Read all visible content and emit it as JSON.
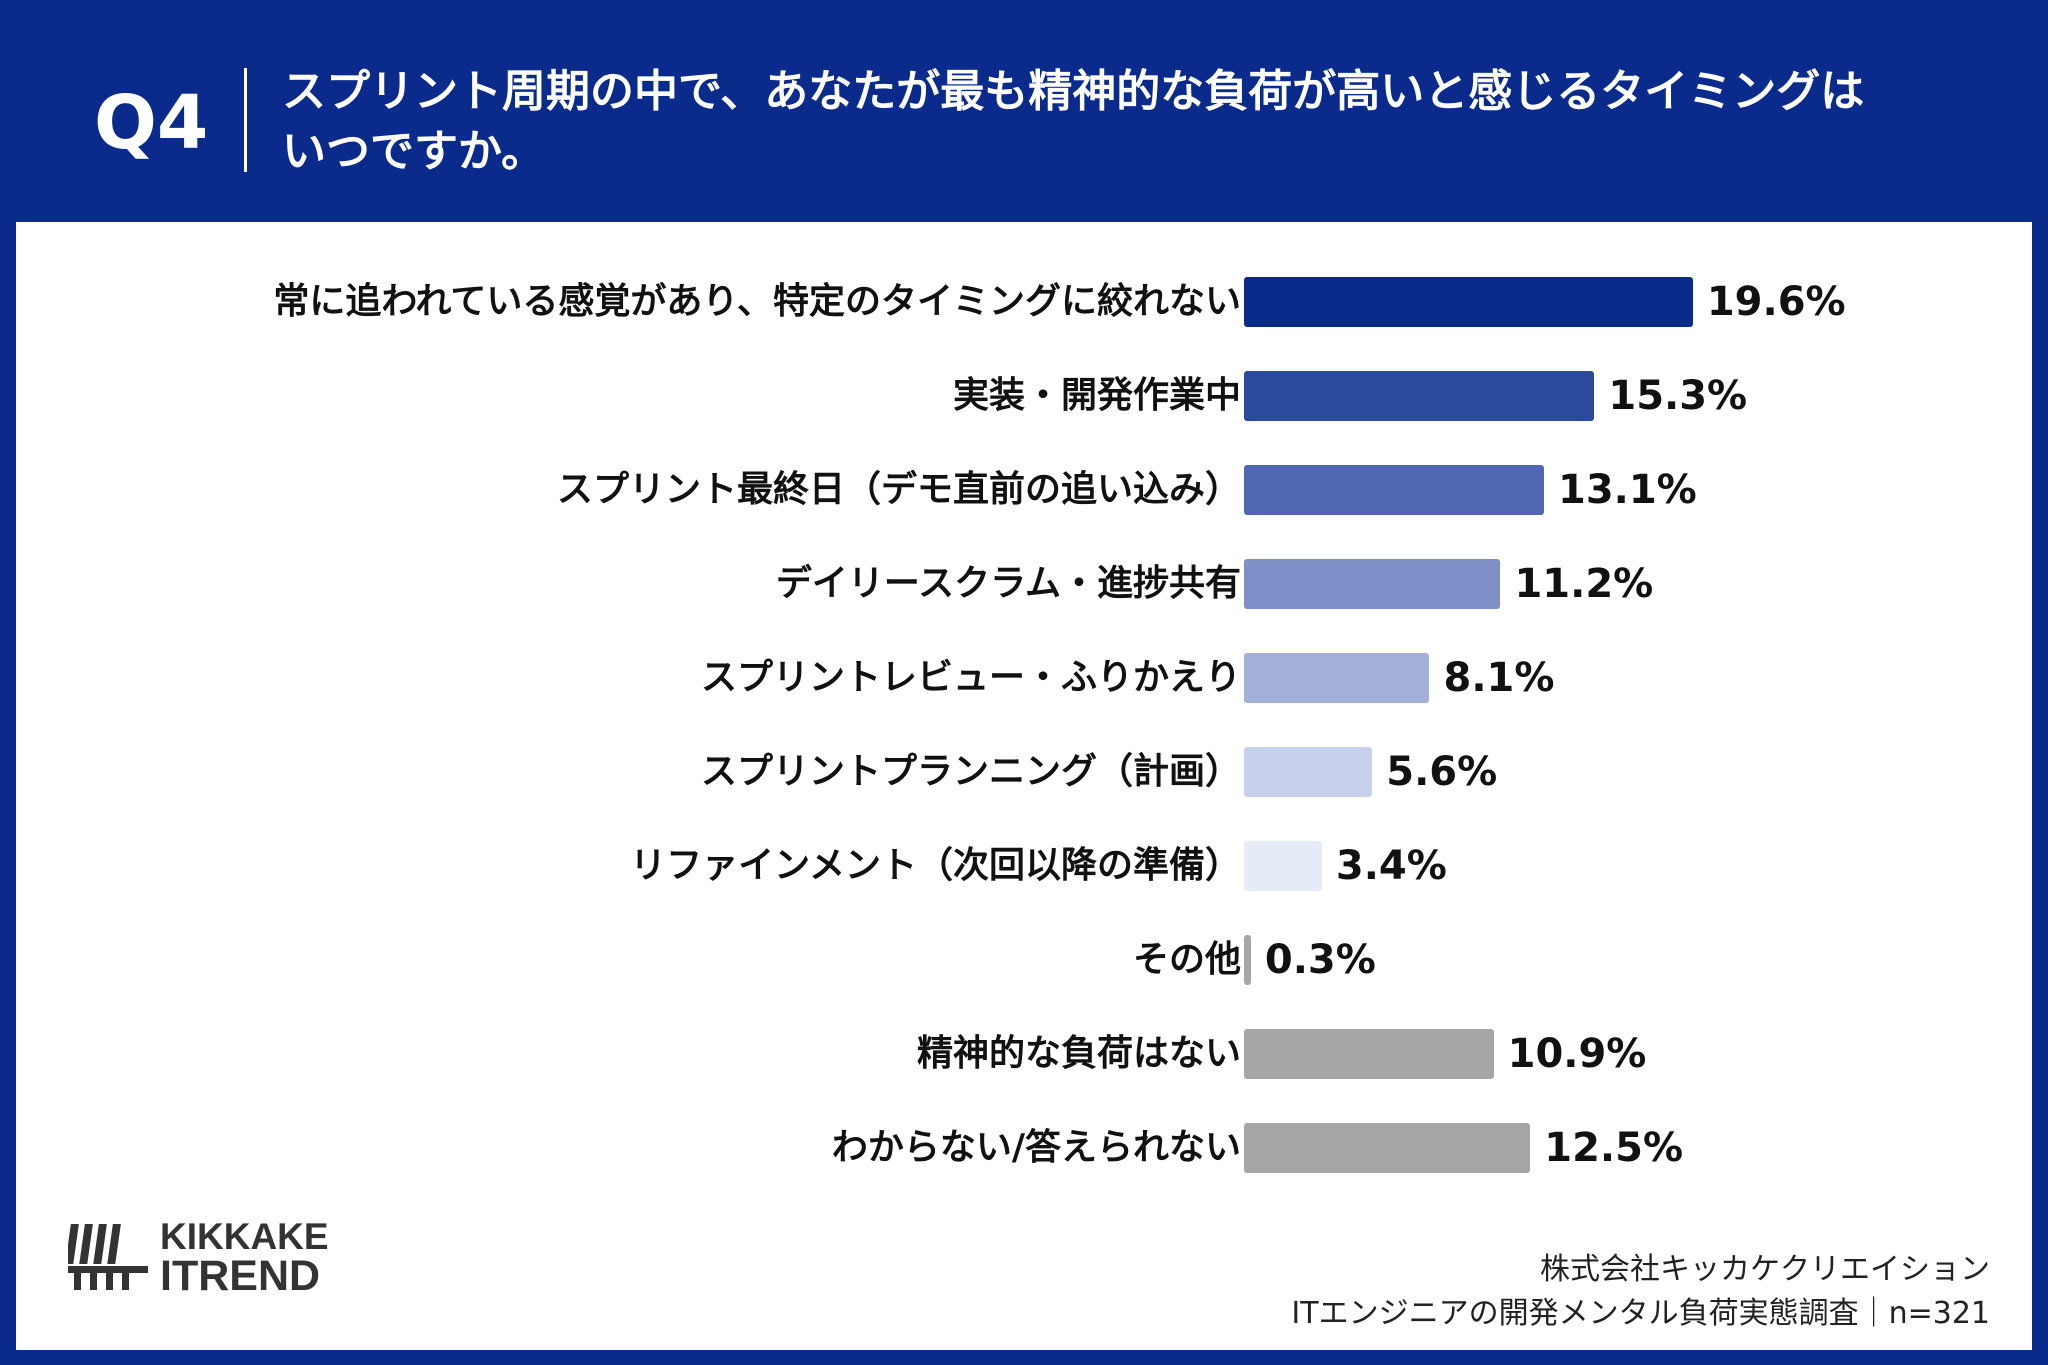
{
  "header": {
    "question_number": "Q4",
    "question_line1": "スプリント周期の中で、あなたが最も精神的な負荷が高いと感じるタイミングは",
    "question_line2": "いつですか。"
  },
  "chart_data": {
    "type": "bar",
    "orientation": "horizontal",
    "categories": [
      "常に追われている感覚があり、特定のタイミングに絞れない",
      "実装・開発作業中",
      "スプリント最終日（デモ直前の追い込み）",
      "デイリースクラム・進捗共有",
      "スプリントレビュー・ふりかえり",
      "スプリントプランニング（計画）",
      "リファインメント（次回以降の準備）",
      "その他",
      "精神的な負荷はない",
      "わからない/答えられない"
    ],
    "values": [
      19.6,
      15.3,
      13.1,
      11.2,
      8.1,
      5.6,
      3.4,
      0.3,
      10.9,
      12.5
    ],
    "value_labels": [
      "19.6%",
      "15.3%",
      "13.1%",
      "11.2%",
      "8.1%",
      "5.6%",
      "3.4%",
      "0.3%",
      "10.9%",
      "12.5%"
    ],
    "unit": "%",
    "colors": [
      "#0a2a8c",
      "#2b4a9e",
      "#5068b2",
      "#7d8fc6",
      "#a1afd9",
      "#c6d0ea",
      "#e5ecf8",
      "#a6a6a6",
      "#a6a6a6",
      "#a6a6a6"
    ],
    "grid": false,
    "legend": "none"
  },
  "logo": {
    "line1": "KIKKAKE",
    "line2": "ITREND"
  },
  "footer": {
    "company": "株式会社キッカケクリエイション",
    "survey": "ITエンジニアの開発メンタル負荷実態調査｜n=321"
  },
  "colors": {
    "brand_navy": "#0a2a8c",
    "panel": "#ffffff"
  }
}
